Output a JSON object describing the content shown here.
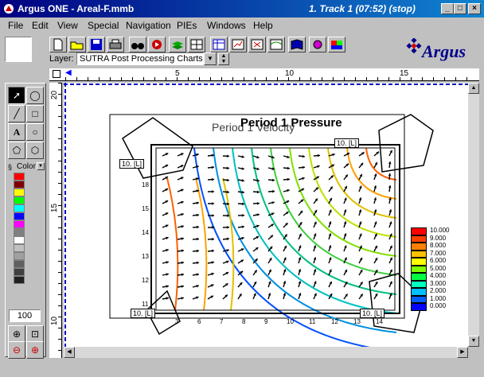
{
  "window": {
    "title": "Argus ONE - Areal-F.mmb",
    "track": "1. Track 1 (07:52)  (stop)",
    "min": "_",
    "max": "□",
    "close": "×"
  },
  "menu": [
    "File",
    "Edit",
    "View",
    "Special",
    "Navigation",
    "PIEs",
    "Windows",
    "Help"
  ],
  "toolbar": {
    "layer_label": "Layer:",
    "layer_value": "SUTRA Post Processing Charts",
    "logo_text": "Argus"
  },
  "tools": {
    "color_label": "Color",
    "zoom_value": "100",
    "text_tool": "A",
    "swatches": [
      "#ff0000",
      "#800000",
      "#ffff00",
      "#00ff00",
      "#00ffff",
      "#0000ff",
      "#ff00ff",
      "#808080",
      "#ffffff",
      "#c0c0c0",
      "#a0a0a0",
      "#606060",
      "#404040",
      "#202020"
    ]
  },
  "ruler": {
    "h_ticks": [
      "5",
      "10",
      "15"
    ],
    "v_ticks": [
      "20",
      "15",
      "10"
    ]
  },
  "chart": {
    "title": "Period 1 Pressure",
    "subtitle": "Period 1 Velocity",
    "frame_labels": [
      "10. [L]",
      "10. [L]",
      "10. [L]",
      "10. [L]"
    ],
    "x_ticks": [
      "3",
      "6",
      "7",
      "8",
      "9",
      "10",
      "11",
      "12",
      "13",
      "14"
    ],
    "y_ticks": [
      "18",
      "15",
      "14",
      "13",
      "12",
      "11"
    ]
  },
  "legend": {
    "values": [
      "10.000",
      "9.000",
      "8.000",
      "7.000",
      "6.000",
      "5.000",
      "4.000",
      "3.000",
      "2.000",
      "1.000",
      "0.000"
    ],
    "colors": [
      "#ff0000",
      "#ff4000",
      "#ff8000",
      "#ffc000",
      "#ffff00",
      "#80ff00",
      "#00ff40",
      "#00ffc0",
      "#00c0ff",
      "#0060ff",
      "#0000ff"
    ]
  }
}
